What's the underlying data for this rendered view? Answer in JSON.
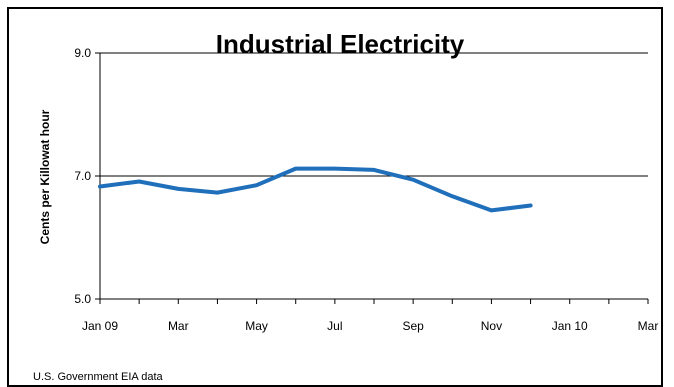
{
  "chart_data": {
    "type": "line",
    "title": "Industrial Electricity",
    "xlabel": "",
    "ylabel": "Cents per Killowat hour",
    "ylim": [
      5.0,
      9.0
    ],
    "yticks": [
      "5.0",
      "7.0",
      "9.0"
    ],
    "gridlines_y": [
      7.0,
      9.0
    ],
    "grid": true,
    "legend": "none",
    "x_tick_labels": [
      "Jan 09",
      "Mar",
      "May",
      "Jul",
      "Sep",
      "Nov",
      "Jan 10",
      "Mar"
    ],
    "x": [
      "2009-01",
      "2009-02",
      "2009-03",
      "2009-04",
      "2009-05",
      "2009-06",
      "2009-07",
      "2009-08",
      "2009-09",
      "2009-10",
      "2009-11",
      "2009-12"
    ],
    "series": [
      {
        "values": [
          6.83,
          6.91,
          6.79,
          6.73,
          6.85,
          7.12,
          7.12,
          7.1,
          6.94,
          6.67,
          6.44,
          6.52
        ]
      }
    ],
    "line_color": "#1f6fba",
    "footnote": "U.S. Government EIA data"
  }
}
